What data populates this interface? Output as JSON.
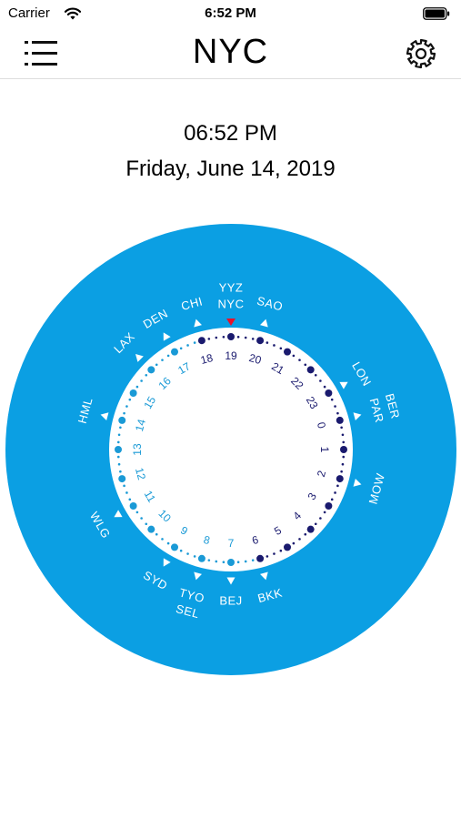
{
  "status_bar": {
    "carrier": "Carrier",
    "time": "6:52 PM"
  },
  "nav": {
    "title": "NYC",
    "menu_icon": "list-icon",
    "settings_icon": "gear-icon"
  },
  "current": {
    "time": "06:52 PM",
    "date": "Friday, June 14, 2019"
  },
  "colors": {
    "ring_blue": "#0b9fe3",
    "day_dot": "#1a1a6e",
    "night_dot": "#1a9ad6",
    "marker_red": "#e8102a"
  },
  "dial": {
    "hour_labels": [
      "19",
      "20",
      "21",
      "22",
      "23",
      "0",
      "1",
      "2",
      "3",
      "4",
      "5",
      "6",
      "7",
      "8",
      "9",
      "10",
      "11",
      "12",
      "13",
      "14",
      "15",
      "16",
      "17",
      "18"
    ],
    "cities": [
      {
        "label": "YYZ",
        "hour": 0,
        "offset": 0
      },
      {
        "label": "NYC",
        "hour": 0,
        "offset": 1
      },
      {
        "label": "SAO",
        "hour": 1,
        "offset": 0
      },
      {
        "label": "LON",
        "hour": 4,
        "offset": 0
      },
      {
        "label": "PAR",
        "hour": 5,
        "offset": 0
      },
      {
        "label": "BER",
        "hour": 5,
        "offset": 1
      },
      {
        "label": "MOW",
        "hour": 7,
        "offset": 0
      },
      {
        "label": "BKK",
        "hour": 11,
        "offset": 0
      },
      {
        "label": "BEJ",
        "hour": 12,
        "offset": 0
      },
      {
        "label": "TYO",
        "hour": 13,
        "offset": 0
      },
      {
        "label": "SEL",
        "hour": 13,
        "offset": 1
      },
      {
        "label": "SYD",
        "hour": 14,
        "offset": 0
      },
      {
        "label": "WLG",
        "hour": 16,
        "offset": 0
      },
      {
        "label": "HML",
        "hour": 19,
        "offset": 0
      },
      {
        "label": "LAX",
        "hour": 21,
        "offset": 0
      },
      {
        "label": "DEN",
        "hour": 22,
        "offset": 0
      },
      {
        "label": "CHI",
        "hour": 23,
        "offset": 0
      }
    ]
  }
}
